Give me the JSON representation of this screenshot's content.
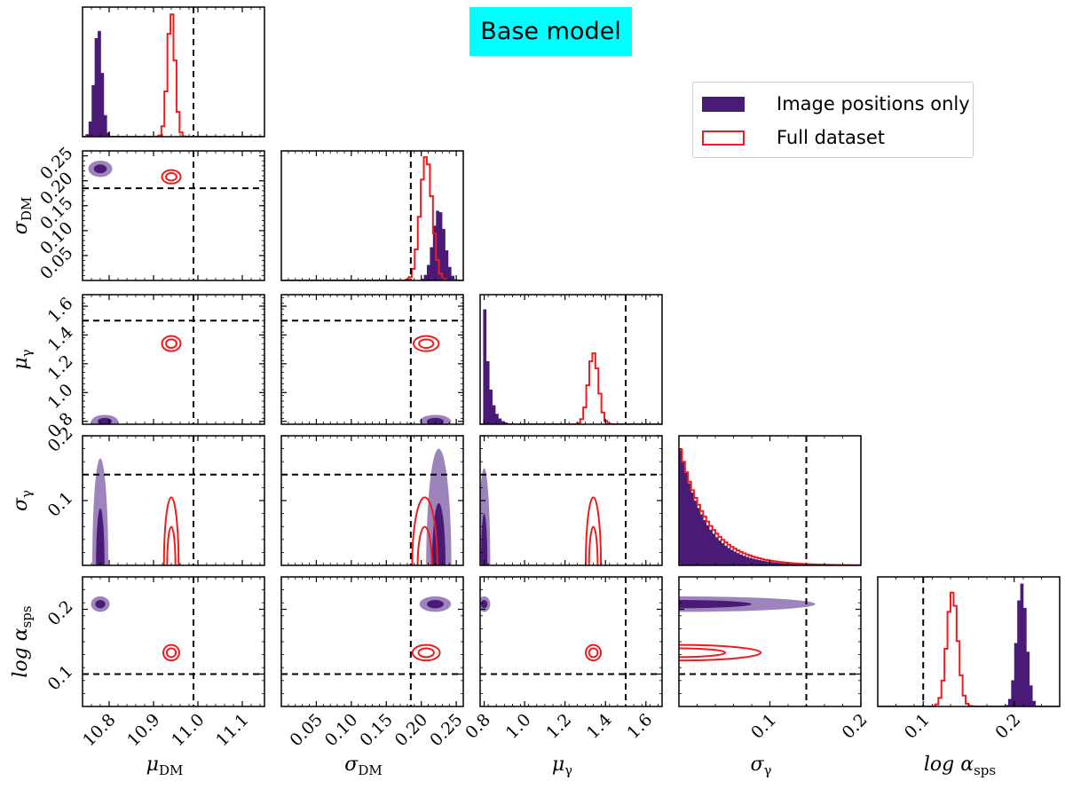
{
  "chart_data": {
    "type": "corner",
    "title": "Base model",
    "legend": {
      "placement": "upper-right",
      "entries": [
        {
          "label": "Image positions only",
          "style": "filled",
          "color": "#4a1a77"
        },
        {
          "label": "Full dataset",
          "style": "step-outline",
          "color": "#ee1c1c"
        }
      ]
    },
    "colors": {
      "image_positions": "#4a1a77",
      "image_positions_light": "#9d84bd",
      "full_dataset": "#ee1c1c",
      "truth": "#000000"
    },
    "parameters": [
      {
        "key": "muDM",
        "label_main": "μ",
        "label_sub": "DM",
        "range": [
          10.74,
          11.15
        ],
        "ticks": [
          10.8,
          10.9,
          11.0,
          11.1
        ],
        "tick_labels": [
          "10.8",
          "10.9",
          "11.0",
          "11.1"
        ],
        "truth": 10.99
      },
      {
        "key": "sigmaDM",
        "label_main": "σ",
        "label_sub": "DM",
        "range": [
          0.0,
          0.26
        ],
        "ticks": [
          0.05,
          0.1,
          0.15,
          0.2,
          0.25
        ],
        "tick_labels": [
          "0.05",
          "0.10",
          "0.15",
          "0.20",
          "0.25"
        ],
        "truth": 0.185
      },
      {
        "key": "mugamma",
        "label_main": "μ",
        "label_sub": "γ",
        "range": [
          0.78,
          1.68
        ],
        "ticks": [
          0.8,
          1.0,
          1.2,
          1.4,
          1.6
        ],
        "tick_labels": [
          "0.8",
          "1.0",
          "1.2",
          "1.4",
          "1.6"
        ],
        "truth": 1.5
      },
      {
        "key": "sigmagamma",
        "label_main": "σ",
        "label_sub": "γ",
        "range": [
          0.0,
          0.2
        ],
        "ticks": [
          0.1,
          0.2
        ],
        "tick_labels": [
          "0.1",
          "0.2"
        ],
        "truth": 0.14
      },
      {
        "key": "logalpha",
        "label_main": "log α",
        "label_sub": "sps",
        "range": [
          0.05,
          0.25
        ],
        "ticks": [
          0.1,
          0.2
        ],
        "tick_labels": [
          "0.1",
          "0.2"
        ],
        "truth": 0.1
      }
    ],
    "marginals": {
      "image_positions": [
        {
          "mean": 10.775,
          "sd": 0.009,
          "peak": 0.85
        },
        {
          "mean": 0.225,
          "sd": 0.0085,
          "peak": 0.55
        },
        {
          "type": "decay",
          "start": 0.8,
          "scale": 0.025,
          "peak": 0.98
        },
        {
          "type": "decay",
          "start": 0.0,
          "scale": 0.028,
          "peak": 0.96
        },
        {
          "mean": 0.208,
          "sd": 0.0055,
          "peak": 0.95
        }
      ],
      "full_dataset": [
        {
          "mean": 10.94,
          "sd": 0.0085,
          "peak": 0.96
        },
        {
          "mean": 0.207,
          "sd": 0.0085,
          "peak": 0.96
        },
        {
          "mean": 1.34,
          "sd": 0.025,
          "peak": 0.55
        },
        {
          "type": "decay",
          "start": 0.0,
          "scale": 0.031,
          "peak": 0.94
        },
        {
          "mean": 0.132,
          "sd": 0.006,
          "peak": 0.88
        }
      ]
    },
    "pairs": [
      {
        "x": 0,
        "y": 1,
        "image_positions": {
          "center": [
            10.78,
            0.224
          ],
          "extent": [
            0.018,
            0.011
          ]
        },
        "full_dataset": {
          "center": [
            10.94,
            0.208
          ],
          "extent": [
            0.014,
            0.009
          ]
        }
      },
      {
        "x": 0,
        "y": 2,
        "image_positions": {
          "center": [
            10.79,
            0.8
          ],
          "extent": [
            0.02,
            0.03
          ]
        },
        "full_dataset": {
          "center": [
            10.94,
            1.34
          ],
          "extent": [
            0.014,
            0.035
          ]
        }
      },
      {
        "x": 1,
        "y": 2,
        "image_positions": {
          "center": [
            0.22,
            0.8
          ],
          "extent": [
            0.015,
            0.03
          ]
        },
        "full_dataset": {
          "center": [
            0.207,
            1.34
          ],
          "extent": [
            0.012,
            0.035
          ]
        }
      },
      {
        "x": 0,
        "y": 3,
        "image_positions": {
          "center": [
            10.78,
            0.0
          ],
          "extent": [
            0.012,
            0.11
          ]
        },
        "full_dataset": {
          "center": [
            10.94,
            0.0
          ],
          "extent": [
            0.011,
            0.07
          ]
        }
      },
      {
        "x": 1,
        "y": 3,
        "image_positions": {
          "center": [
            0.225,
            0.0
          ],
          "extent": [
            0.012,
            0.12
          ]
        },
        "full_dataset": {
          "center": [
            0.205,
            0.0
          ],
          "extent": [
            0.012,
            0.07
          ]
        }
      },
      {
        "x": 2,
        "y": 3,
        "image_positions": {
          "center": [
            0.8,
            0.0
          ],
          "extent": [
            0.02,
            0.1
          ]
        },
        "full_dataset": {
          "center": [
            1.34,
            0.0
          ],
          "extent": [
            0.025,
            0.07
          ]
        }
      },
      {
        "x": 0,
        "y": 4,
        "image_positions": {
          "center": [
            10.78,
            0.208
          ],
          "extent": [
            0.014,
            0.008
          ]
        },
        "full_dataset": {
          "center": [
            10.94,
            0.133
          ],
          "extent": [
            0.012,
            0.008
          ]
        }
      },
      {
        "x": 1,
        "y": 4,
        "image_positions": {
          "center": [
            0.22,
            0.208
          ],
          "extent": [
            0.015,
            0.008
          ]
        },
        "full_dataset": {
          "center": [
            0.207,
            0.133
          ],
          "extent": [
            0.013,
            0.008
          ]
        }
      },
      {
        "x": 2,
        "y": 4,
        "image_positions": {
          "center": [
            0.8,
            0.208
          ],
          "extent": [
            0.02,
            0.008
          ]
        },
        "full_dataset": {
          "center": [
            1.34,
            0.133
          ],
          "extent": [
            0.025,
            0.008
          ]
        }
      },
      {
        "x": 3,
        "y": 4,
        "image_positions": {
          "center": [
            0.0,
            0.208
          ],
          "extent": [
            0.1,
            0.008
          ]
        },
        "full_dataset": {
          "center": [
            0.0,
            0.133
          ],
          "extent": [
            0.06,
            0.008
          ]
        }
      }
    ]
  }
}
